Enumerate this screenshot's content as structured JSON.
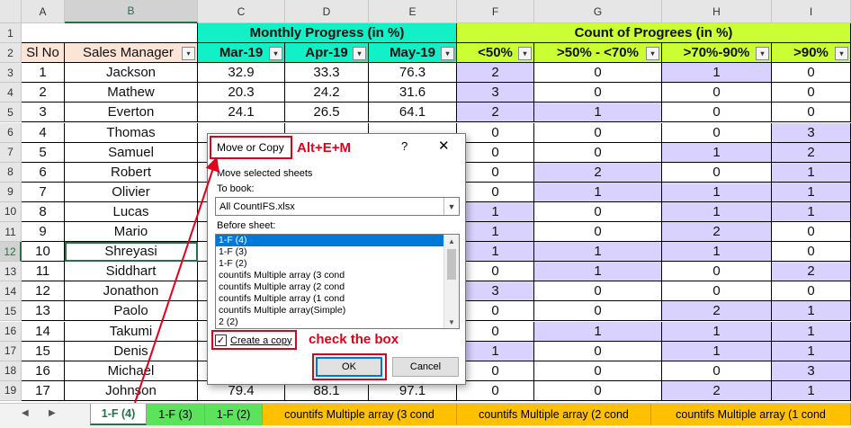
{
  "columns": [
    "A",
    "B",
    "C",
    "D",
    "E",
    "F",
    "G",
    "H",
    "I"
  ],
  "row_numbers": [
    "1",
    "2",
    "3",
    "4",
    "5",
    "6",
    "7",
    "8",
    "9",
    "10",
    "11",
    "12",
    "13",
    "14",
    "15",
    "16",
    "17",
    "18",
    "19"
  ],
  "header_row1": {
    "monthly_progress": "Monthly Progress (in %)",
    "count_progress": "Count of Progrees (in %)"
  },
  "header_row2": [
    "Sl No",
    "Sales Manager",
    "Mar-19",
    "Apr-19",
    "May-19",
    "<50%",
    ">50% - <70%",
    ">70%-90%",
    ">90%"
  ],
  "rows": [
    [
      "1",
      "Jackson",
      "32.9",
      "33.3",
      "76.3",
      "2",
      "0",
      "1",
      "0"
    ],
    [
      "2",
      "Mathew",
      "20.3",
      "24.2",
      "31.6",
      "3",
      "0",
      "0",
      "0"
    ],
    [
      "3",
      "Everton",
      "24.1",
      "26.5",
      "64.1",
      "2",
      "1",
      "0",
      "0"
    ],
    [
      "4",
      "Thomas",
      "",
      "",
      "",
      "0",
      "0",
      "0",
      "3"
    ],
    [
      "5",
      "Samuel",
      "",
      "",
      "",
      "0",
      "0",
      "1",
      "2"
    ],
    [
      "6",
      "Robert",
      "",
      "",
      "",
      "0",
      "2",
      "0",
      "1"
    ],
    [
      "7",
      "Olivier",
      "",
      "",
      "",
      "0",
      "1",
      "1",
      "1"
    ],
    [
      "8",
      "Lucas",
      "",
      "",
      "",
      "1",
      "0",
      "1",
      "1"
    ],
    [
      "9",
      "Mario",
      "",
      "",
      "",
      "1",
      "0",
      "2",
      "0"
    ],
    [
      "10",
      "Shreyasi",
      "",
      "",
      "",
      "1",
      "1",
      "1",
      "0"
    ],
    [
      "11",
      "Siddhart",
      "",
      "",
      "",
      "0",
      "1",
      "0",
      "2"
    ],
    [
      "12",
      "Jonathon",
      "",
      "",
      "",
      "3",
      "0",
      "0",
      "0"
    ],
    [
      "13",
      "Paolo",
      "",
      "",
      "",
      "0",
      "0",
      "2",
      "1"
    ],
    [
      "14",
      "Takumi",
      "",
      "",
      "",
      "0",
      "1",
      "1",
      "1"
    ],
    [
      "15",
      "Denis",
      "",
      "",
      "",
      "1",
      "0",
      "1",
      "1"
    ],
    [
      "16",
      "Michael",
      "",
      "",
      "",
      "0",
      "0",
      "0",
      "3"
    ],
    [
      "17",
      "Johnson",
      "79.4",
      "88.1",
      "97.1",
      "0",
      "0",
      "2",
      "1"
    ]
  ],
  "dialog": {
    "title": "Move or Copy",
    "help": "?",
    "close": "✕",
    "move_label": "Move selected sheets",
    "to_book_label": "To book:",
    "to_book_value": "All CountIFS.xlsx",
    "before_sheet_label": "Before sheet:",
    "sheets": [
      "1-F (4)",
      "1-F (3)",
      "1-F (2)",
      "countifs Multiple array (3 cond",
      "countifs Multiple array (2 cond",
      "countifs Multiple array (1 cond",
      "countifs Multiple array(Simple)",
      "2 (2)"
    ],
    "create_copy_label": "Create a copy",
    "create_copy_checked": "✓",
    "ok": "OK",
    "cancel": "Cancel"
  },
  "annotations": {
    "shortcut": "Alt+E+M",
    "check": "check the box"
  },
  "tabs": [
    {
      "label": "1-F (4)",
      "color": "#ffffff"
    },
    {
      "label": "1-F (3)",
      "color": "#5be35b"
    },
    {
      "label": "1-F (2)",
      "color": "#5be35b"
    },
    {
      "label": "countifs Multiple array (3 cond",
      "color": "#ffc000"
    },
    {
      "label": "countifs Multiple array (2 cond",
      "color": "#ffc000"
    },
    {
      "label": "countifs Multiple array (1 cond",
      "color": "#ffc000"
    }
  ],
  "colors": {
    "monthly_header": "#12f0c7",
    "count_header": "#ccff33",
    "sl_header": "#fce4d6",
    "highlight_purple": "#d9d2ff",
    "red_annotation": "#e0001b"
  }
}
